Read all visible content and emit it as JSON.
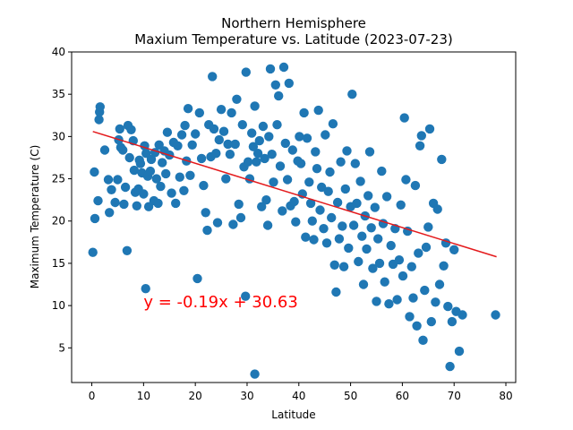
{
  "chart_data": {
    "type": "scatter",
    "title": "Northern Hemisphere",
    "subtitle": "Maxium Temperature vs. Latitude (2023-07-23)",
    "xlabel": "Latitude",
    "ylabel": "Maximum Temperature (C)",
    "xlim": [
      -3.9,
      81.9
    ],
    "ylim": [
      0.9,
      40
    ],
    "xticks": [
      0,
      10,
      20,
      30,
      40,
      50,
      60,
      70,
      80
    ],
    "yticks": [
      5,
      10,
      15,
      20,
      25,
      30,
      35,
      40
    ],
    "grid": false,
    "point_color": "#1f77b4",
    "line_color": "#e41a1c",
    "regression": {
      "slope": -0.19,
      "intercept": 30.63,
      "x_range": [
        0.2,
        78.2
      ]
    },
    "annotation": {
      "text": "y = -0.19x + 30.63",
      "x": 10,
      "y": 9.8,
      "color": "#ff0000"
    },
    "points": [
      [
        0.2,
        16.3
      ],
      [
        0.5,
        25.8
      ],
      [
        0.6,
        20.3
      ],
      [
        1.2,
        22.4
      ],
      [
        1.4,
        32.0
      ],
      [
        1.5,
        32.9
      ],
      [
        1.6,
        33.5
      ],
      [
        2.5,
        28.4
      ],
      [
        3.2,
        24.9
      ],
      [
        3.4,
        21.0
      ],
      [
        3.8,
        23.7
      ],
      [
        4.5,
        22.2
      ],
      [
        5.0,
        24.9
      ],
      [
        5.2,
        29.6
      ],
      [
        5.4,
        30.9
      ],
      [
        5.6,
        28.7
      ],
      [
        6.0,
        28.4
      ],
      [
        6.2,
        22.0
      ],
      [
        6.5,
        24.0
      ],
      [
        6.8,
        16.5
      ],
      [
        7.0,
        31.3
      ],
      [
        7.3,
        27.5
      ],
      [
        7.6,
        30.8
      ],
      [
        8.0,
        29.5
      ],
      [
        8.2,
        26.0
      ],
      [
        8.4,
        23.4
      ],
      [
        8.7,
        21.8
      ],
      [
        9.0,
        23.8
      ],
      [
        9.2,
        27.2
      ],
      [
        9.4,
        26.8
      ],
      [
        9.7,
        25.7
      ],
      [
        10.0,
        23.2
      ],
      [
        10.2,
        28.9
      ],
      [
        10.5,
        28.0
      ],
      [
        10.8,
        25.3
      ],
      [
        11.0,
        21.7
      ],
      [
        11.3,
        25.9
      ],
      [
        11.5,
        27.3
      ],
      [
        12.0,
        22.4
      ],
      [
        12.2,
        28.1
      ],
      [
        12.5,
        25.0
      ],
      [
        12.8,
        22.1
      ],
      [
        13.0,
        29.0
      ],
      [
        13.3,
        24.1
      ],
      [
        13.6,
        26.9
      ],
      [
        14.0,
        28.3
      ],
      [
        14.3,
        25.6
      ],
      [
        14.6,
        30.5
      ],
      [
        15.0,
        27.8
      ],
      [
        15.4,
        23.3
      ],
      [
        15.8,
        29.3
      ],
      [
        16.2,
        22.1
      ],
      [
        16.6,
        28.9
      ],
      [
        17.0,
        25.2
      ],
      [
        17.4,
        30.2
      ],
      [
        17.8,
        23.6
      ],
      [
        18.0,
        31.3
      ],
      [
        18.3,
        27.1
      ],
      [
        18.6,
        33.3
      ],
      [
        19.0,
        25.4
      ],
      [
        19.4,
        29.0
      ],
      [
        20.0,
        30.3
      ],
      [
        20.4,
        13.2
      ],
      [
        20.8,
        32.8
      ],
      [
        21.2,
        27.4
      ],
      [
        21.6,
        24.2
      ],
      [
        22.0,
        21.0
      ],
      [
        22.3,
        18.9
      ],
      [
        22.6,
        31.4
      ],
      [
        23.0,
        27.6
      ],
      [
        23.3,
        37.1
      ],
      [
        23.6,
        30.9
      ],
      [
        24.0,
        28.0
      ],
      [
        24.3,
        19.8
      ],
      [
        24.6,
        29.6
      ],
      [
        25.0,
        33.2
      ],
      [
        25.5,
        30.6
      ],
      [
        25.9,
        25.0
      ],
      [
        26.3,
        29.1
      ],
      [
        26.7,
        27.9
      ],
      [
        27.0,
        32.8
      ],
      [
        27.3,
        19.6
      ],
      [
        27.7,
        29.1
      ],
      [
        28.0,
        34.4
      ],
      [
        28.4,
        22.0
      ],
      [
        28.8,
        20.4
      ],
      [
        29.1,
        31.4
      ],
      [
        29.4,
        26.4
      ],
      [
        29.8,
        37.6
      ],
      [
        30.2,
        27.0
      ],
      [
        30.5,
        25.0
      ],
      [
        30.9,
        30.4
      ],
      [
        31.2,
        28.8
      ],
      [
        31.5,
        33.6
      ],
      [
        31.8,
        27.0
      ],
      [
        32.1,
        28.0
      ],
      [
        32.4,
        29.5
      ],
      [
        32.8,
        21.7
      ],
      [
        33.1,
        31.2
      ],
      [
        33.4,
        27.4
      ],
      [
        33.7,
        22.5
      ],
      [
        34.0,
        19.5
      ],
      [
        34.2,
        30.0
      ],
      [
        34.5,
        38.0
      ],
      [
        34.8,
        27.9
      ],
      [
        35.1,
        24.6
      ],
      [
        35.5,
        36.1
      ],
      [
        35.8,
        31.4
      ],
      [
        36.1,
        34.8
      ],
      [
        36.4,
        26.5
      ],
      [
        36.8,
        21.2
      ],
      [
        37.1,
        38.2
      ],
      [
        37.4,
        29.2
      ],
      [
        37.8,
        24.9
      ],
      [
        38.1,
        36.3
      ],
      [
        38.4,
        21.8
      ],
      [
        38.8,
        28.4
      ],
      [
        39.1,
        22.3
      ],
      [
        39.4,
        19.9
      ],
      [
        39.8,
        27.1
      ],
      [
        40.1,
        30.0
      ],
      [
        40.4,
        26.8
      ],
      [
        40.7,
        23.2
      ],
      [
        41.0,
        32.8
      ],
      [
        41.3,
        18.1
      ],
      [
        41.6,
        29.8
      ],
      [
        42.0,
        24.6
      ],
      [
        42.3,
        22.1
      ],
      [
        42.6,
        20.0
      ],
      [
        42.9,
        17.8
      ],
      [
        43.2,
        28.2
      ],
      [
        43.5,
        26.2
      ],
      [
        43.8,
        33.1
      ],
      [
        44.1,
        21.3
      ],
      [
        44.4,
        24.0
      ],
      [
        44.8,
        19.1
      ],
      [
        45.1,
        30.2
      ],
      [
        45.4,
        17.4
      ],
      [
        45.7,
        23.5
      ],
      [
        46.0,
        25.8
      ],
      [
        46.3,
        20.4
      ],
      [
        46.6,
        31.5
      ],
      [
        46.9,
        14.8
      ],
      [
        47.2,
        11.6
      ],
      [
        47.5,
        22.2
      ],
      [
        47.8,
        17.9
      ],
      [
        48.1,
        27.0
      ],
      [
        48.4,
        19.4
      ],
      [
        48.7,
        14.6
      ],
      [
        49.0,
        23.8
      ],
      [
        49.3,
        28.3
      ],
      [
        49.6,
        16.8
      ],
      [
        50.0,
        21.7
      ],
      [
        50.3,
        35.0
      ],
      [
        50.6,
        19.5
      ],
      [
        50.9,
        26.8
      ],
      [
        51.2,
        22.1
      ],
      [
        51.5,
        15.2
      ],
      [
        51.9,
        24.7
      ],
      [
        52.2,
        18.2
      ],
      [
        52.5,
        12.5
      ],
      [
        52.8,
        20.6
      ],
      [
        53.1,
        16.7
      ],
      [
        53.4,
        23.0
      ],
      [
        53.7,
        28.2
      ],
      [
        54.0,
        19.2
      ],
      [
        54.3,
        14.4
      ],
      [
        54.7,
        21.6
      ],
      [
        55.0,
        10.5
      ],
      [
        55.3,
        17.9
      ],
      [
        55.6,
        15.0
      ],
      [
        56.0,
        25.9
      ],
      [
        56.3,
        19.7
      ],
      [
        56.6,
        12.8
      ],
      [
        57.0,
        22.9
      ],
      [
        57.4,
        10.2
      ],
      [
        57.8,
        17.1
      ],
      [
        58.2,
        14.9
      ],
      [
        58.6,
        19.1
      ],
      [
        59.0,
        10.7
      ],
      [
        59.4,
        15.4
      ],
      [
        59.7,
        21.9
      ],
      [
        60.1,
        13.5
      ],
      [
        60.4,
        32.2
      ],
      [
        60.7,
        24.9
      ],
      [
        61.0,
        18.8
      ],
      [
        61.4,
        8.7
      ],
      [
        61.8,
        14.6
      ],
      [
        62.1,
        10.9
      ],
      [
        62.5,
        24.2
      ],
      [
        62.8,
        7.6
      ],
      [
        63.1,
        16.2
      ],
      [
        63.4,
        28.9
      ],
      [
        63.7,
        30.1
      ],
      [
        64.0,
        5.9
      ],
      [
        64.3,
        11.8
      ],
      [
        64.6,
        16.9
      ],
      [
        65.0,
        19.3
      ],
      [
        65.3,
        30.9
      ],
      [
        65.6,
        8.1
      ],
      [
        66.0,
        22.1
      ],
      [
        66.4,
        10.4
      ],
      [
        66.8,
        21.4
      ],
      [
        67.2,
        12.5
      ],
      [
        67.6,
        27.3
      ],
      [
        68.0,
        14.7
      ],
      [
        68.4,
        17.4
      ],
      [
        68.8,
        9.9
      ],
      [
        69.2,
        2.8
      ],
      [
        69.6,
        8.1
      ],
      [
        70.0,
        16.6
      ],
      [
        70.4,
        9.3
      ],
      [
        71.0,
        4.6
      ],
      [
        71.6,
        8.9
      ],
      [
        10.4,
        12.0
      ],
      [
        29.7,
        11.1
      ],
      [
        31.5,
        1.9
      ],
      [
        78.0,
        8.9
      ]
    ]
  }
}
